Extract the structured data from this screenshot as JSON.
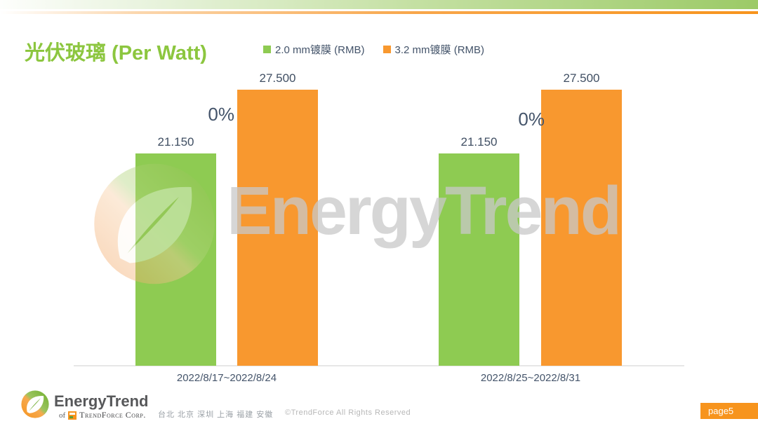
{
  "slide": {
    "title": "光伏玻璃 (Per Watt)",
    "page_badge": "page5"
  },
  "chart_data": {
    "type": "bar",
    "title": "光伏玻璃 (Per Watt)",
    "categories": [
      "2022/8/17~2022/8/24",
      "2022/8/25~2022/8/31"
    ],
    "series": [
      {
        "name": "2.0 mm镀膜 (RMB)",
        "color": "#8ecb52",
        "values": [
          21.15,
          21.15
        ],
        "labels": [
          "21.150",
          "21.150"
        ]
      },
      {
        "name": "3.2 mm镀膜 (RMB)",
        "color": "#f8982f",
        "values": [
          27.5,
          27.5
        ],
        "labels": [
          "27.500",
          "27.500"
        ]
      }
    ],
    "change_annotations": [
      "0%",
      "0%"
    ],
    "ylim": [
      0,
      29.5
    ],
    "grid": false,
    "legend_position": "top-center",
    "xlabel": "",
    "ylabel": ""
  },
  "watermark": {
    "text": "EnergyTrend",
    "leaf_logo": "energytrend-leaf-icon"
  },
  "footer": {
    "logo_text": "EnergyTrend",
    "of_label": "of",
    "corp_label": "TrendForce Corp.",
    "cities": "台北  北京  深圳  上海  福建  安徽",
    "copyright": "©TrendForce All Rights Reserved"
  },
  "colors": {
    "series_green": "#8ecb52",
    "series_orange": "#f8982f",
    "title_green": "#8cc63f",
    "label_dark": "#44546a",
    "watermark_gray": "#c9c9c9",
    "badge_orange": "#f7941d",
    "banner_green": "#9cca67",
    "accent_orange": "#f7941d"
  }
}
